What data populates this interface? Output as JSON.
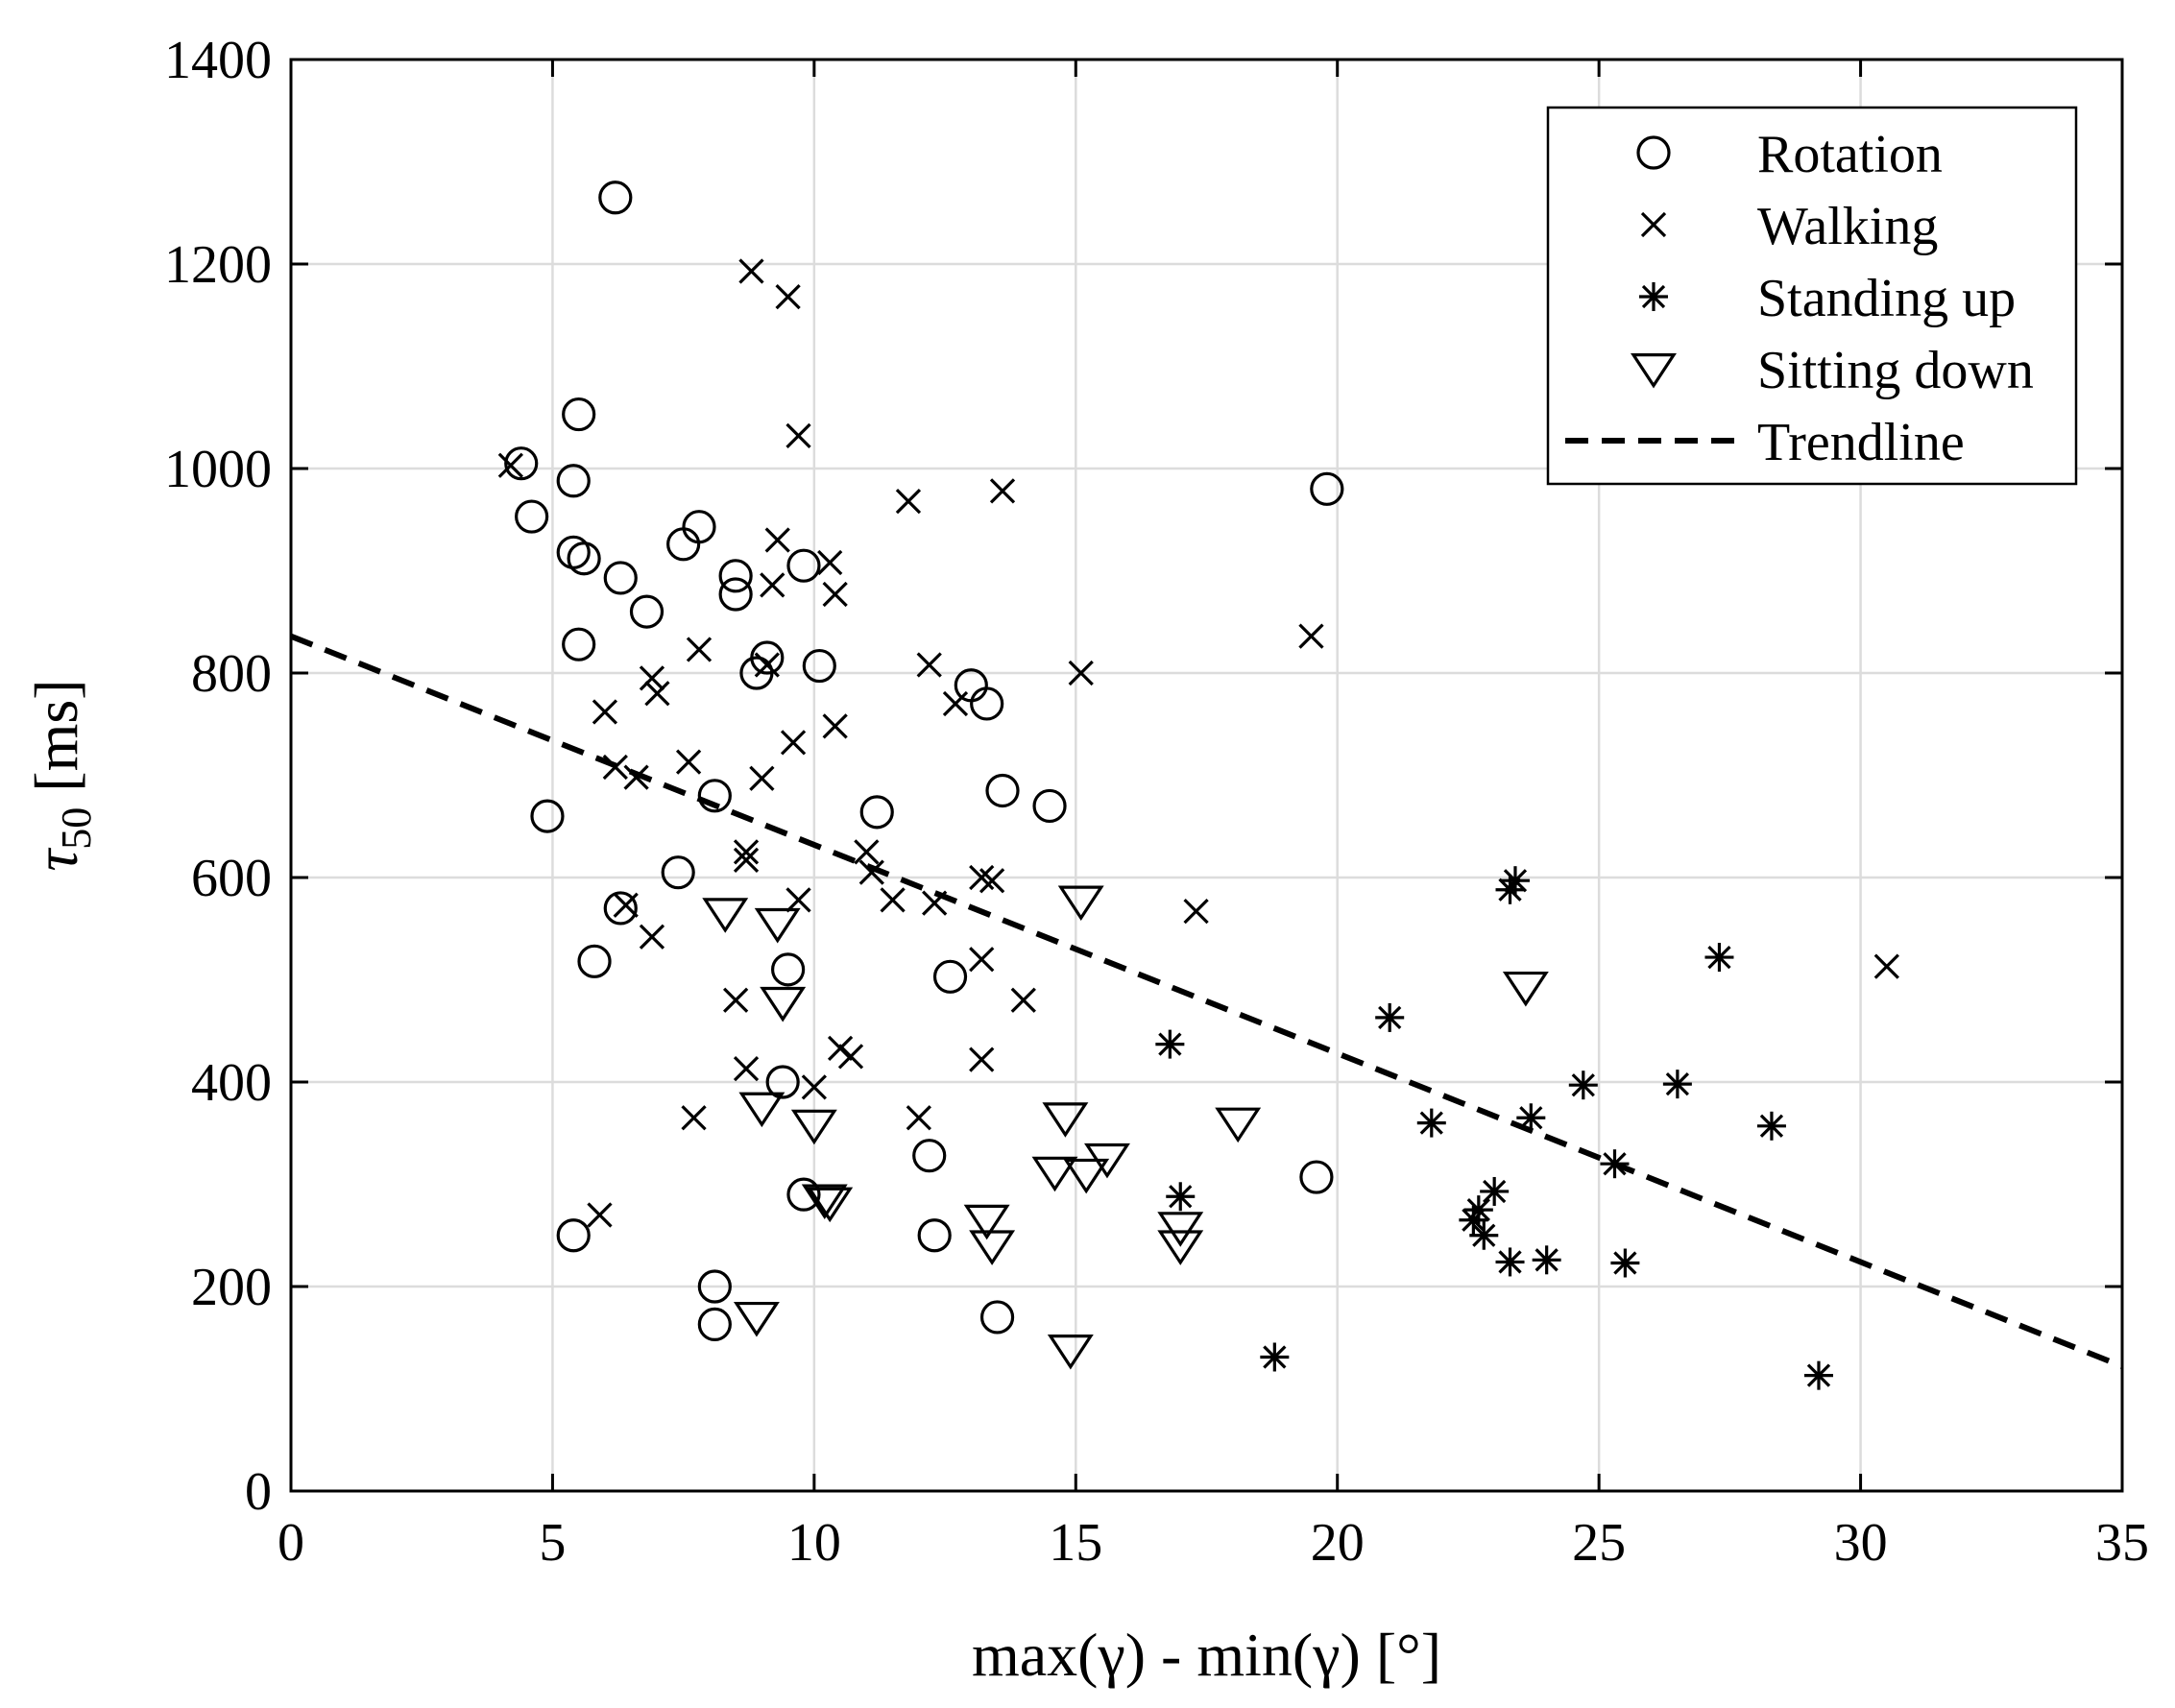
{
  "chart_data": {
    "type": "scatter",
    "title": "",
    "xlabel": "max(γ) - min(γ) [°]",
    "ylabel_main": "τ",
    "ylabel_sub": "50",
    "ylabel_unit": " [ms]",
    "xlim": [
      0,
      35
    ],
    "ylim": [
      0,
      1400
    ],
    "xticks": [
      0,
      5,
      10,
      15,
      20,
      25,
      30,
      35
    ],
    "yticks": [
      0,
      200,
      400,
      600,
      800,
      1000,
      1200,
      1400
    ],
    "grid": true,
    "legend_position": "top-right",
    "series": [
      {
        "name": "Rotation",
        "marker": "circle",
        "points": [
          [
            6.2,
            1265
          ],
          [
            4.4,
            1005
          ],
          [
            5.5,
            1053
          ],
          [
            5.4,
            988
          ],
          [
            4.6,
            953
          ],
          [
            5.4,
            918
          ],
          [
            5.6,
            912
          ],
          [
            6.3,
            893
          ],
          [
            6.8,
            860
          ],
          [
            5.5,
            828
          ],
          [
            7.5,
            926
          ],
          [
            7.8,
            943
          ],
          [
            8.5,
            895
          ],
          [
            8.5,
            877
          ],
          [
            9.8,
            905
          ],
          [
            9.1,
            815
          ],
          [
            8.9,
            800
          ],
          [
            10.1,
            807
          ],
          [
            13.0,
            788
          ],
          [
            13.3,
            770
          ],
          [
            19.8,
            980
          ],
          [
            4.9,
            660
          ],
          [
            8.1,
            680
          ],
          [
            11.2,
            664
          ],
          [
            13.6,
            685
          ],
          [
            14.5,
            670
          ],
          [
            7.4,
            605
          ],
          [
            6.3,
            570
          ],
          [
            5.8,
            518
          ],
          [
            9.5,
            510
          ],
          [
            12.6,
            503
          ],
          [
            9.4,
            400
          ],
          [
            9.8,
            290
          ],
          [
            12.2,
            328
          ],
          [
            12.3,
            250
          ],
          [
            5.4,
            250
          ],
          [
            8.1,
            200
          ],
          [
            8.1,
            163
          ],
          [
            13.5,
            170
          ],
          [
            19.6,
            307
          ]
        ]
      },
      {
        "name": "Walking",
        "marker": "x",
        "points": [
          [
            8.8,
            1193
          ],
          [
            9.5,
            1168
          ],
          [
            9.7,
            1032
          ],
          [
            4.2,
            1003
          ],
          [
            11.8,
            968
          ],
          [
            13.6,
            978
          ],
          [
            9.3,
            930
          ],
          [
            10.3,
            908
          ],
          [
            9.2,
            886
          ],
          [
            10.4,
            877
          ],
          [
            19.5,
            836
          ],
          [
            7.8,
            823
          ],
          [
            9.1,
            808
          ],
          [
            12.2,
            808
          ],
          [
            15.1,
            800
          ],
          [
            6.9,
            795
          ],
          [
            7.0,
            780
          ],
          [
            6.0,
            762
          ],
          [
            12.7,
            770
          ],
          [
            10.4,
            748
          ],
          [
            9.6,
            732
          ],
          [
            7.6,
            713
          ],
          [
            6.2,
            708
          ],
          [
            6.6,
            698
          ],
          [
            9.0,
            697
          ],
          [
            8.7,
            625
          ],
          [
            8.7,
            617
          ],
          [
            11.0,
            625
          ],
          [
            11.1,
            605
          ],
          [
            11.5,
            578
          ],
          [
            12.3,
            575
          ],
          [
            13.2,
            600
          ],
          [
            13.4,
            597
          ],
          [
            9.7,
            578
          ],
          [
            6.4,
            573
          ],
          [
            17.3,
            567
          ],
          [
            6.9,
            542
          ],
          [
            13.2,
            520
          ],
          [
            30.5,
            513
          ],
          [
            8.5,
            480
          ],
          [
            14.0,
            480
          ],
          [
            10.5,
            433
          ],
          [
            10.7,
            425
          ],
          [
            13.2,
            422
          ],
          [
            8.7,
            413
          ],
          [
            10.0,
            395
          ],
          [
            7.7,
            365
          ],
          [
            12.0,
            365
          ],
          [
            5.9,
            270
          ]
        ]
      },
      {
        "name": "Standing up",
        "marker": "asterisk",
        "points": [
          [
            23.4,
            597
          ],
          [
            23.3,
            588
          ],
          [
            27.3,
            522
          ],
          [
            21.0,
            463
          ],
          [
            16.8,
            437
          ],
          [
            24.7,
            397
          ],
          [
            26.5,
            398
          ],
          [
            21.8,
            360
          ],
          [
            23.7,
            365
          ],
          [
            28.3,
            357
          ],
          [
            25.3,
            320
          ],
          [
            17.0,
            288
          ],
          [
            23.0,
            293
          ],
          [
            22.7,
            275
          ],
          [
            22.6,
            265
          ],
          [
            22.8,
            250
          ],
          [
            23.3,
            224
          ],
          [
            24.0,
            226
          ],
          [
            25.5,
            223
          ],
          [
            18.8,
            131
          ],
          [
            29.2,
            113
          ]
        ]
      },
      {
        "name": "Sitting down",
        "marker": "triangle-down",
        "points": [
          [
            8.3,
            565
          ],
          [
            9.3,
            555
          ],
          [
            15.1,
            577
          ],
          [
            9.4,
            478
          ],
          [
            23.6,
            493
          ],
          [
            9.0,
            375
          ],
          [
            10.0,
            358
          ],
          [
            14.8,
            365
          ],
          [
            18.1,
            360
          ],
          [
            14.6,
            312
          ],
          [
            15.2,
            310
          ],
          [
            15.6,
            325
          ],
          [
            10.2,
            285
          ],
          [
            10.3,
            282
          ],
          [
            13.3,
            265
          ],
          [
            17.0,
            258
          ],
          [
            13.4,
            240
          ],
          [
            17.0,
            240
          ],
          [
            8.9,
            170
          ],
          [
            14.9,
            138
          ]
        ]
      },
      {
        "name": "Trendline",
        "marker": "dashed-line",
        "points": [
          [
            0,
            836
          ],
          [
            35,
            122
          ]
        ]
      }
    ]
  }
}
